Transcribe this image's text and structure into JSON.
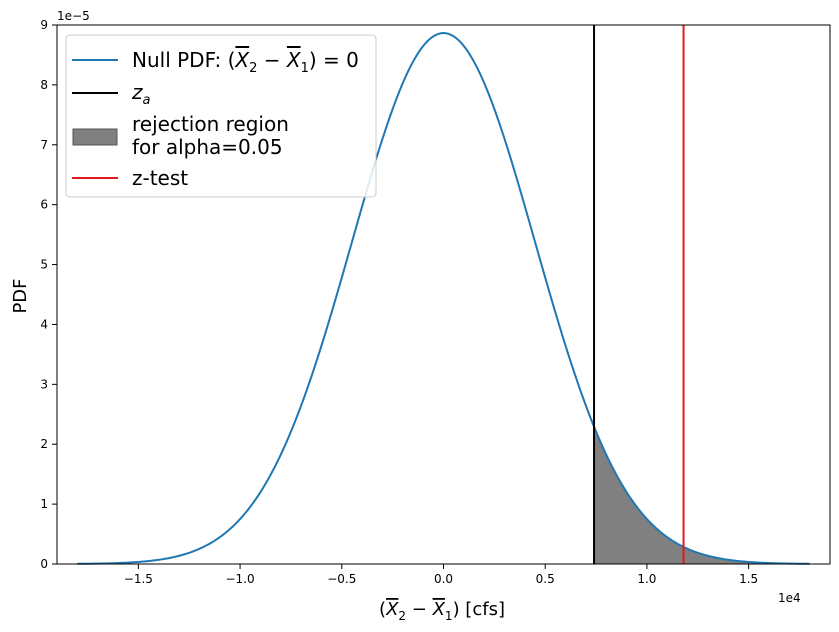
{
  "chart_data": {
    "type": "line",
    "xlabel": "(X̄₂ − X̄₁) [cfs]",
    "ylabel": "PDF",
    "x_offset_label": "1e4",
    "y_offset_label": "1e−5",
    "xlim": [
      -19000,
      19000
    ],
    "ylim": [
      0,
      9e-05
    ],
    "x_scale": 10000,
    "y_scale": 1e-05,
    "x_ticks": [
      -15000,
      -10000,
      -5000,
      0,
      5000,
      10000,
      15000
    ],
    "x_tick_labels": [
      "−1.5",
      "−1.0",
      "−0.5",
      "0.0",
      "0.5",
      "1.0",
      "1.5"
    ],
    "y_ticks": [
      0,
      1e-05,
      2e-05,
      3e-05,
      4e-05,
      5e-05,
      6e-05,
      7e-05,
      8e-05,
      9e-05
    ],
    "y_tick_labels": [
      "0",
      "1",
      "2",
      "3",
      "4",
      "5",
      "6",
      "7",
      "8",
      "9"
    ],
    "null_pdf": {
      "name": "Null PDF: (X̄₂ − X̄₁) = 0",
      "color": "#1f77b4",
      "mean": 0,
      "std": 4500,
      "x_min": -18000,
      "x_max": 18000
    },
    "critical_value": {
      "name": "z_a",
      "x": 7400,
      "color": "#000000"
    },
    "rejection_region": {
      "name_line1": "rejection region",
      "name_line2": "for alpha=0.05",
      "from": 7400,
      "to": 18000,
      "color": "#808080"
    },
    "z_test": {
      "name": "z-test",
      "x": 11800,
      "color": "#e31a1c"
    },
    "legend_position": "upper-left",
    "grid": false
  }
}
